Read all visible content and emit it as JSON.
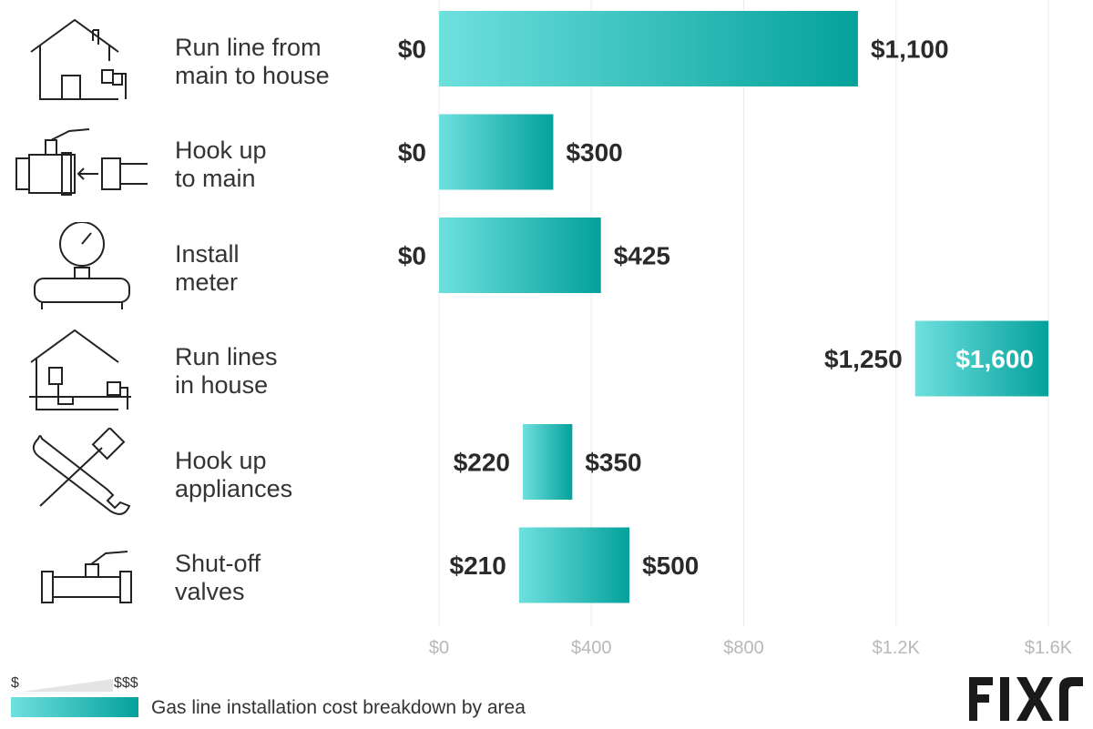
{
  "chart_data": {
    "type": "bar",
    "orientation": "horizontal",
    "categories": [
      "Run line from\nmain to house",
      "Hook up\nto main",
      "Install\nmeter",
      "Run lines\nin house",
      "Hook up\nappliances",
      "Shut-off\nvalves"
    ],
    "series": [
      {
        "low": [
          0,
          0,
          0,
          1250,
          220,
          210
        ],
        "high": [
          1100,
          300,
          425,
          1600,
          350,
          500
        ]
      }
    ],
    "low_labels": [
      "$0",
      "$0",
      "$0",
      "$1,250",
      "$220",
      "$210"
    ],
    "high_labels": [
      "$1,100",
      "$300",
      "$425",
      "$1,600",
      "$350",
      "$500"
    ],
    "xlim": [
      0,
      1600
    ],
    "xticks": [
      0,
      400,
      800,
      1200,
      1600
    ],
    "xtick_labels": [
      "$0",
      "$400",
      "$800",
      "$1.2K",
      "$1.6K"
    ],
    "grid": true,
    "colors": {
      "bar_low": "#6ee0de",
      "bar_high": "#04a19b",
      "grid": "#ececec",
      "tick": "#b8b8b8",
      "label": "#2a2a2a"
    }
  },
  "icons": [
    "house-meter-icon",
    "valve-pipe-icon",
    "gauge-meter-icon",
    "house-pipes-icon",
    "wrench-screwdriver-icon",
    "shutoff-valve-icon"
  ],
  "legend": {
    "low": "$",
    "high": "$$$",
    "caption": "Gas line installation cost breakdown by area"
  },
  "logo": {
    "text": "FIXR",
    "color": "#1a1a1a"
  }
}
